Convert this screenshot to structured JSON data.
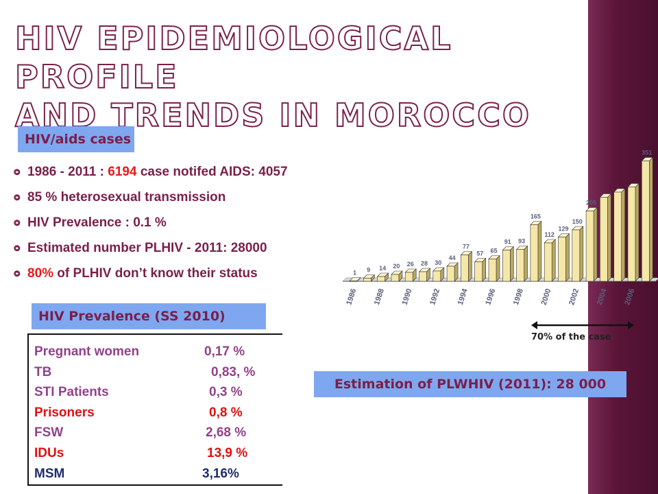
{
  "slide": {
    "title_line1": "HIV epidemiological profile",
    "title_line2": "and trends in Morocco",
    "cases_label": "HIV/aids cases",
    "prevalence_label": "HIV Prevalence (SS 2010)",
    "estimation_label": "Estimation of PLWHIV (2011): 28 000",
    "arrow_label": "70% of the case"
  },
  "facts": [
    {
      "pre": "1986 - 2011 : ",
      "hl": "6194",
      "post": "  case notifed AIDS:  4057"
    },
    {
      "pre": "85 % heterosexual  transmission",
      "hl": "",
      "post": ""
    },
    {
      "pre": "HIV Prevalence            : 0.1 %",
      "hl": "",
      "post": ""
    },
    {
      "pre": "Estimated  number PLHIV - 2011:   28000",
      "hl": "",
      "post": ""
    },
    {
      "pre": "",
      "hl": "80%",
      "post": " of PLHIV don’t know their status"
    }
  ],
  "prevalence_rows": [
    {
      "name": "Pregnant women",
      "value": "0,17 %",
      "color": "#93408a"
    },
    {
      "name": "TB",
      "value": "0,83, %",
      "color": "#93408a"
    },
    {
      "name": "STI  Patients",
      "value": "0,3 %",
      "color": "#93408a"
    },
    {
      "name": "Prisoners",
      "value": "0,8 %",
      "color": "#e10f0f"
    },
    {
      "name": "FSW",
      "value": "2,68 %",
      "color": "#93408a"
    },
    {
      "name": " IDUs",
      "value": "13,9 %",
      "color": "#e10f0f"
    },
    {
      "name": " MSM",
      "value": "3,16%",
      "color": "#1d2d6e"
    }
  ],
  "chart_data": {
    "type": "bar",
    "categories": [
      "1986",
      "1987",
      "1988",
      "1989",
      "1990",
      "1991",
      "1992",
      "1993",
      "1994",
      "1995",
      "1996",
      "1997",
      "1998",
      "1999",
      "2000",
      "2001",
      "2002",
      "2003",
      "2004",
      "2005",
      "2006",
      "2007"
    ],
    "x_tick_labels": [
      "1986",
      "1988",
      "1990",
      "1992",
      "1994",
      "1996",
      "1998",
      "2000",
      "2002",
      "2004",
      "2006"
    ],
    "values": [
      1,
      9,
      14,
      20,
      26,
      28,
      30,
      44,
      77,
      57,
      65,
      91,
      93,
      165,
      112,
      129,
      150,
      205,
      245,
      260,
      275,
      351
    ],
    "data_labels": [
      "1",
      "9",
      "14",
      "20",
      "26",
      "28",
      "30",
      "44",
      "77",
      "57",
      "65",
      "91",
      "93",
      "165",
      "112",
      "129",
      "150",
      "205",
      "",
      "",
      "",
      "351"
    ],
    "ylim": [
      0,
      360
    ],
    "grid": false,
    "bar_color": "#f5e7a8"
  }
}
